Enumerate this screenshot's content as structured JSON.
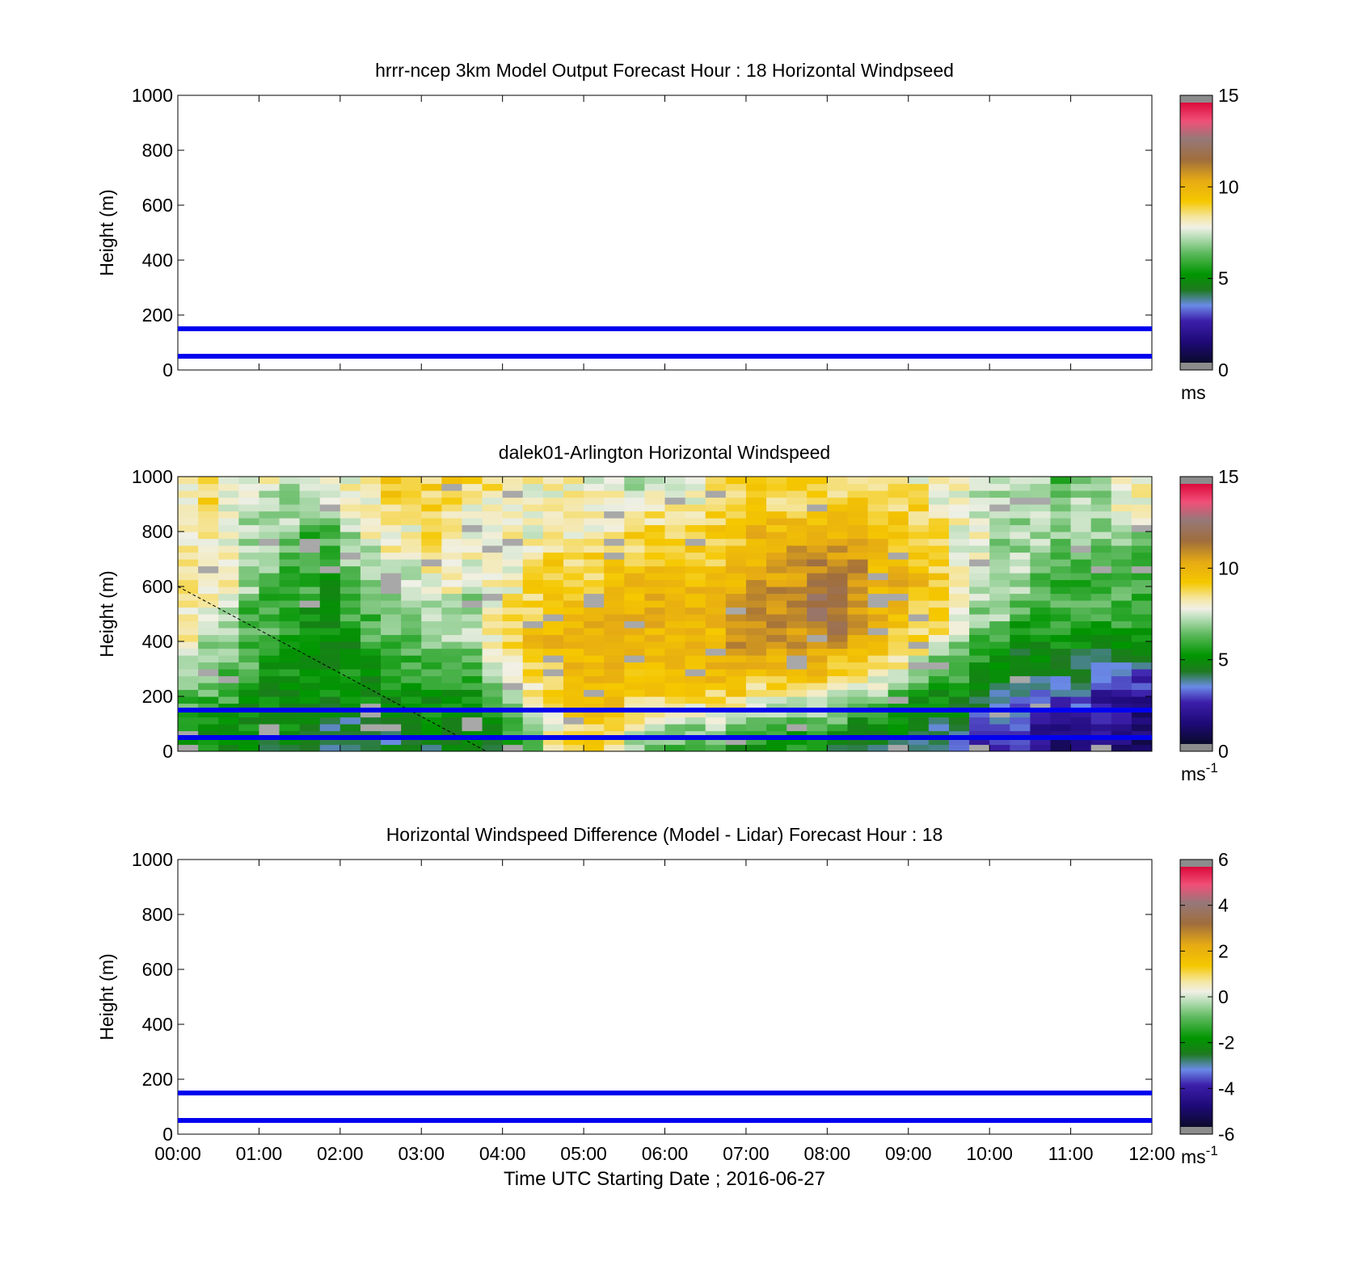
{
  "x_axis": {
    "label": "Time UTC  Starting Date ; 2016-06-27",
    "ticks": [
      "00:00",
      "01:00",
      "02:00",
      "03:00",
      "04:00",
      "05:00",
      "06:00",
      "07:00",
      "08:00",
      "09:00",
      "10:00",
      "11:00",
      "12:00"
    ],
    "range_hours": [
      0,
      12
    ]
  },
  "chart_data": [
    {
      "type": "heatmap",
      "title": "hrrr-ncep 3km Model Output   Forecast Hour : 18 Horizontal Windpseed",
      "ylabel": "Height (m)",
      "ylim": [
        0,
        1000
      ],
      "yticks": [
        "0",
        "200",
        "400",
        "600",
        "800",
        "1000"
      ],
      "hlines": [
        50,
        150
      ],
      "hline_color": "#0000ee",
      "colorbar": {
        "range": [
          0,
          15
        ],
        "ticks": [
          "0",
          "5",
          "10",
          "15"
        ],
        "tick_values": [
          0,
          5,
          10,
          15
        ],
        "unit": "ms",
        "unit_sup": ""
      },
      "cells": []
    },
    {
      "type": "heatmap",
      "title": "dalek01-Arlington  Horizontal Windspeed",
      "ylabel": "Height (m)",
      "ylim": [
        0,
        1000
      ],
      "yticks": [
        "0",
        "200",
        "400",
        "600",
        "800",
        "1000"
      ],
      "hlines": [
        50,
        150
      ],
      "hline_color": "#0000ee",
      "colorbar": {
        "range": [
          0,
          15
        ],
        "ticks": [
          "0",
          "5",
          "10",
          "15"
        ],
        "tick_values": [
          0,
          5,
          10,
          15
        ],
        "unit": "ms",
        "unit_sup": "-1"
      },
      "time_step_hours": 0.25,
      "height_levels_m": [
        0,
        100,
        200,
        300,
        400,
        500,
        600,
        700,
        800,
        900,
        1000
      ],
      "windspeed_profiles": [
        [
          5,
          6,
          6,
          7,
          8,
          8,
          9,
          8,
          8,
          8,
          8
        ],
        [
          5,
          5,
          6,
          7,
          7,
          8,
          8,
          8,
          8,
          9,
          9
        ],
        [
          5,
          5,
          6,
          6,
          7,
          7,
          8,
          8,
          8,
          8,
          8
        ],
        [
          5,
          5,
          5,
          6,
          6,
          6,
          7,
          7,
          7,
          7,
          8
        ],
        [
          4,
          5,
          5,
          5,
          6,
          6,
          6,
          7,
          7,
          7,
          8
        ],
        [
          4,
          5,
          5,
          5,
          5,
          6,
          6,
          6,
          7,
          7,
          7
        ],
        [
          4,
          4,
          5,
          5,
          5,
          5,
          6,
          6,
          6,
          7,
          7
        ],
        [
          4,
          4,
          5,
          5,
          5,
          5,
          5,
          6,
          6,
          7,
          8
        ],
        [
          4,
          4,
          5,
          5,
          5,
          6,
          6,
          7,
          7,
          8,
          8
        ],
        [
          4,
          4,
          5,
          5,
          6,
          6,
          7,
          7,
          8,
          8,
          9
        ],
        [
          4,
          4,
          5,
          6,
          6,
          7,
          7,
          8,
          8,
          9,
          9
        ],
        [
          4,
          4,
          5,
          6,
          6,
          7,
          7,
          8,
          8,
          9,
          9
        ],
        [
          4,
          5,
          5,
          6,
          7,
          7,
          8,
          8,
          9,
          9,
          9
        ],
        [
          4,
          5,
          5,
          6,
          7,
          7,
          8,
          8,
          8,
          9,
          9
        ],
        [
          4,
          5,
          5,
          6,
          7,
          7,
          7,
          8,
          8,
          8,
          9
        ],
        [
          4,
          5,
          6,
          7,
          8,
          8,
          8,
          8,
          8,
          8,
          9
        ],
        [
          5,
          6,
          7,
          8,
          9,
          9,
          8,
          8,
          8,
          8,
          8
        ],
        [
          6,
          7,
          8,
          9,
          10,
          9,
          9,
          8,
          8,
          8,
          8
        ],
        [
          8,
          8,
          9,
          9,
          10,
          10,
          9,
          9,
          8,
          8,
          8
        ],
        [
          9,
          9,
          9,
          10,
          10,
          10,
          9,
          9,
          8,
          8,
          8
        ],
        [
          9,
          9,
          10,
          10,
          10,
          10,
          9,
          9,
          8,
          8,
          8
        ],
        [
          8,
          9,
          10,
          10,
          10,
          10,
          10,
          9,
          8,
          8,
          8
        ],
        [
          7,
          8,
          9,
          10,
          10,
          10,
          10,
          9,
          9,
          8,
          7
        ],
        [
          6,
          8,
          9,
          10,
          10,
          10,
          10,
          9,
          9,
          8,
          7
        ],
        [
          6,
          7,
          9,
          10,
          10,
          10,
          10,
          9,
          9,
          8,
          7
        ],
        [
          6,
          7,
          9,
          10,
          10,
          10,
          10,
          9,
          9,
          8,
          8
        ],
        [
          6,
          7,
          9,
          10,
          10,
          10,
          10,
          9,
          9,
          9,
          8
        ],
        [
          5,
          7,
          9,
          10,
          11,
          11,
          10,
          10,
          9,
          9,
          9
        ],
        [
          5,
          6,
          8,
          10,
          11,
          11,
          11,
          10,
          10,
          9,
          9
        ],
        [
          5,
          6,
          8,
          10,
          11,
          11,
          11,
          10,
          10,
          9,
          9
        ],
        [
          5,
          6,
          8,
          10,
          11,
          11,
          11,
          11,
          10,
          9,
          9
        ],
        [
          5,
          6,
          8,
          10,
          11,
          12,
          12,
          11,
          10,
          9,
          9
        ],
        [
          4,
          6,
          7,
          9,
          11,
          12,
          12,
          11,
          10,
          9,
          9
        ],
        [
          4,
          5,
          7,
          9,
          10,
          11,
          11,
          11,
          10,
          9,
          9
        ],
        [
          4,
          5,
          7,
          8,
          10,
          10,
          10,
          10,
          10,
          9,
          9
        ],
        [
          4,
          5,
          6,
          8,
          9,
          10,
          10,
          10,
          9,
          9,
          9
        ],
        [
          3,
          4,
          5,
          7,
          9,
          9,
          10,
          9,
          9,
          9,
          8
        ],
        [
          3,
          4,
          5,
          6,
          8,
          9,
          9,
          9,
          9,
          8,
          8
        ],
        [
          3,
          4,
          5,
          6,
          7,
          8,
          8,
          8,
          8,
          8,
          8
        ],
        [
          2,
          3,
          4,
          5,
          6,
          7,
          7,
          8,
          8,
          7,
          7
        ],
        [
          2,
          3,
          4,
          5,
          6,
          7,
          7,
          7,
          7,
          7,
          7
        ],
        [
          2,
          3,
          3,
          4,
          5,
          6,
          7,
          7,
          7,
          7,
          7
        ],
        [
          2,
          2,
          3,
          4,
          5,
          6,
          6,
          7,
          7,
          7,
          7
        ],
        [
          1,
          2,
          3,
          4,
          5,
          6,
          6,
          6,
          7,
          7,
          6
        ],
        [
          1,
          2,
          3,
          4,
          5,
          6,
          6,
          6,
          7,
          7,
          7
        ],
        [
          1,
          2,
          2,
          3,
          5,
          6,
          6,
          6,
          7,
          7,
          7
        ],
        [
          1,
          2,
          2,
          3,
          5,
          6,
          6,
          6,
          7,
          8,
          8
        ],
        [
          1,
          1,
          2,
          3,
          5,
          6,
          6,
          6,
          7,
          8,
          8
        ]
      ],
      "annotation_line": {
        "from": [
          0,
          600
        ],
        "to": [
          3.8,
          0
        ]
      }
    },
    {
      "type": "heatmap",
      "title": "Horizontal Windspeed Difference (Model - Lidar) Forecast Hour : 18",
      "ylabel": "Height (m)",
      "ylim": [
        0,
        1000
      ],
      "yticks": [
        "0",
        "200",
        "400",
        "600",
        "800",
        "1000"
      ],
      "hlines": [
        50,
        150
      ],
      "hline_color": "#0000ee",
      "colorbar": {
        "range": [
          -6,
          6
        ],
        "ticks": [
          "-6",
          "-4",
          "-2",
          "0",
          "2",
          "4",
          "6"
        ],
        "tick_values": [
          -6,
          -4,
          -2,
          0,
          2,
          4,
          6
        ],
        "unit": "ms",
        "unit_sup": "-1"
      },
      "cells": []
    }
  ]
}
